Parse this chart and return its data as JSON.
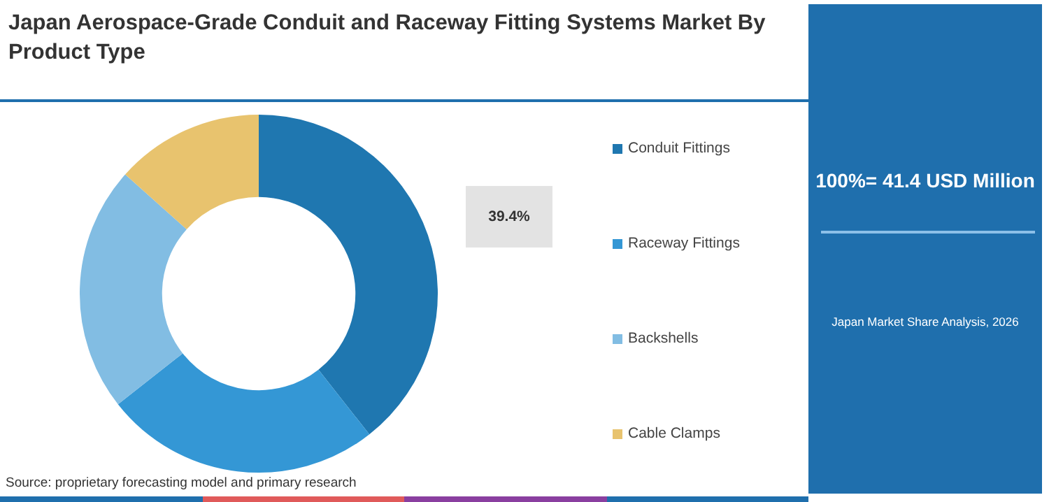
{
  "chart_data": {
    "type": "donut",
    "title": "Japan Aerospace-Grade Conduit and Raceway Fitting Systems Market By Product Type",
    "categories": [
      "Conduit Fittings",
      "Raceway Fittings",
      "Backshells",
      "Cable Clamps"
    ],
    "values": [
      39.4,
      25,
      22.2,
      13.4
    ],
    "colors": [
      "#1f77b0",
      "#3497d5",
      "#82bde3",
      "#e8c36e"
    ],
    "value_labels": [
      "39.4%",
      null,
      null,
      null
    ],
    "legend": "right",
    "annotations": [
      "Source: proprietary forecasting model and primary research",
      "100%= 41.4 USD Million",
      "Japan Market Share Analysis, 2026"
    ]
  }
}
